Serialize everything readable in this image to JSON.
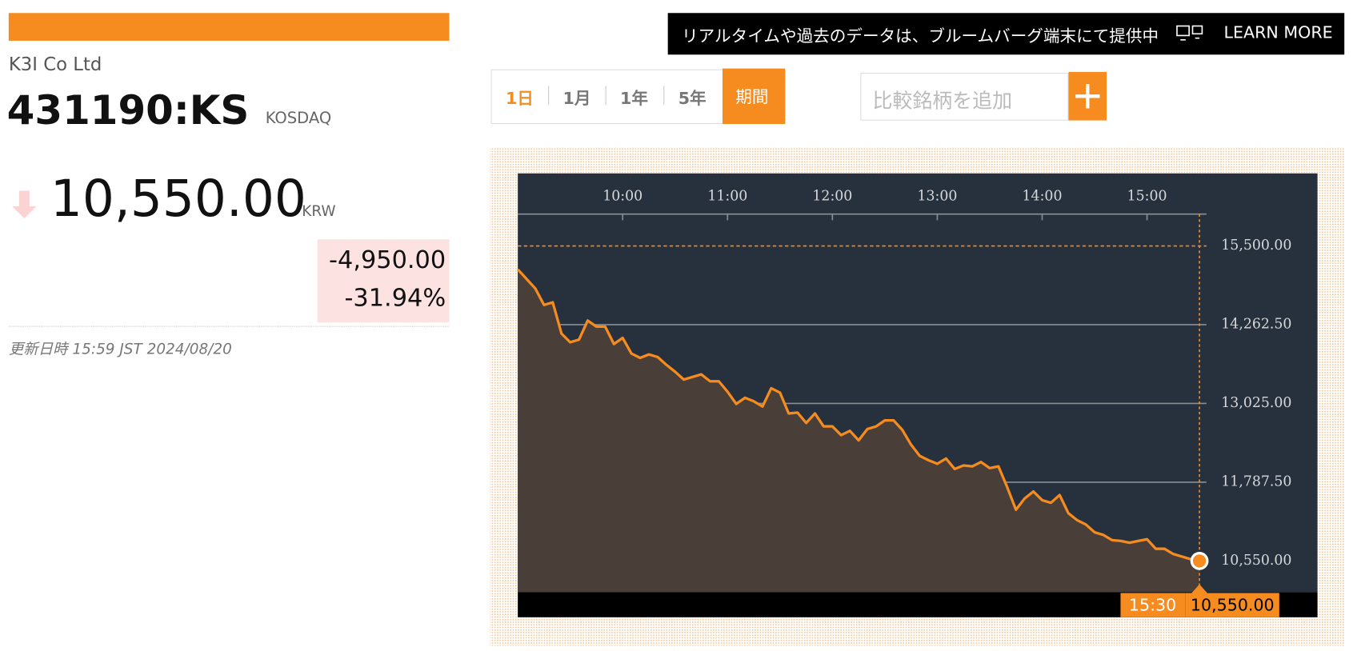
{
  "header": {
    "company": "K3I Co Ltd",
    "ticker": "431190:KS",
    "exchange": "KOSDAQ",
    "price": "10,550.00",
    "currency": "KRW",
    "change": "-4,950.00",
    "change_pct": "-31.94%",
    "updated": "更新日時 15:59 JST 2024/08/20"
  },
  "banner": {
    "text": "リアルタイムや過去のデータは、ブルームバーグ端末にて提供中",
    "link": "LEARN MORE"
  },
  "tabs": [
    "1日",
    "1月",
    "1年",
    "5年",
    "期間"
  ],
  "search": {
    "placeholder": "比較銘柄を追加"
  },
  "chart_data": {
    "type": "area",
    "color": "#f68b1f",
    "x": [
      "09:00",
      "09:05",
      "09:10",
      "09:15",
      "09:20",
      "09:25",
      "09:30",
      "09:35",
      "09:40",
      "09:45",
      "09:50",
      "09:55",
      "10:00",
      "10:05",
      "10:10",
      "10:15",
      "10:20",
      "10:25",
      "10:30",
      "10:35",
      "10:40",
      "10:45",
      "10:50",
      "10:55",
      "11:00",
      "11:05",
      "11:10",
      "11:15",
      "11:20",
      "11:25",
      "11:30",
      "11:35",
      "11:40",
      "11:45",
      "11:50",
      "11:55",
      "12:00",
      "12:05",
      "12:10",
      "12:15",
      "12:20",
      "12:25",
      "12:30",
      "12:35",
      "12:40",
      "12:45",
      "12:50",
      "12:55",
      "13:00",
      "13:05",
      "13:10",
      "13:15",
      "13:20",
      "13:25",
      "13:30",
      "13:35",
      "13:40",
      "13:45",
      "13:50",
      "13:55",
      "14:00",
      "14:05",
      "14:10",
      "14:15",
      "14:20",
      "14:25",
      "14:30",
      "14:35",
      "14:40",
      "14:45",
      "14:50",
      "14:55",
      "15:00",
      "15:05",
      "15:10",
      "15:15",
      "15:20",
      "15:25",
      "15:30"
    ],
    "values": [
      15132,
      14982,
      14832,
      14573,
      14614,
      14123,
      13986,
      14027,
      14327,
      14232,
      14232,
      13959,
      14055,
      13809,
      13741,
      13795,
      13755,
      13632,
      13523,
      13400,
      13441,
      13482,
      13373,
      13373,
      13209,
      13018,
      13114,
      13059,
      12977,
      13264,
      13195,
      12868,
      12882,
      12718,
      12868,
      12664,
      12664,
      12527,
      12595,
      12445,
      12623,
      12664,
      12759,
      12759,
      12609,
      12377,
      12200,
      12132,
      12077,
      12159,
      11995,
      12050,
      12036,
      12105,
      12009,
      12036,
      11709,
      11355,
      11532,
      11641,
      11505,
      11464,
      11586,
      11300,
      11191,
      11123,
      11000,
      10959,
      10877,
      10864,
      10836,
      10864,
      10891,
      10741,
      10741,
      10659,
      10618,
      10577,
      10550
    ],
    "value_labels": [
      null,
      null,
      null,
      null,
      null,
      null,
      null,
      null,
      null,
      null,
      null,
      null,
      null,
      null,
      null,
      null,
      null,
      null,
      null,
      null,
      null,
      null,
      null,
      null,
      null,
      null,
      null,
      null,
      null,
      null,
      null,
      null,
      null,
      null,
      null,
      null,
      null,
      null,
      null,
      null,
      null,
      null,
      null,
      null,
      null,
      null,
      null,
      null,
      null,
      null,
      null,
      null,
      null,
      null,
      null,
      null,
      null,
      null,
      null,
      null,
      null,
      null,
      null,
      null,
      null,
      null,
      null,
      null,
      null,
      null,
      null,
      null,
      null,
      null,
      null,
      null,
      null,
      null,
      "10,550.00"
    ],
    "xlim": [
      "09:00",
      "15:34"
    ],
    "xticks": [
      "10:00",
      "11:00",
      "12:00",
      "13:00",
      "14:00",
      "15:00"
    ],
    "ylim": [
      10060,
      16000
    ],
    "yticks": [
      {
        "value": 10550,
        "label": "10,550.00"
      },
      {
        "value": 11787.5,
        "label": "11,787.50"
      },
      {
        "value": 13025,
        "label": "13,025.00"
      },
      {
        "value": 14262.5,
        "label": "14,262.50"
      },
      {
        "value": 15500,
        "label": "15,500.00"
      }
    ],
    "grid": true
  }
}
